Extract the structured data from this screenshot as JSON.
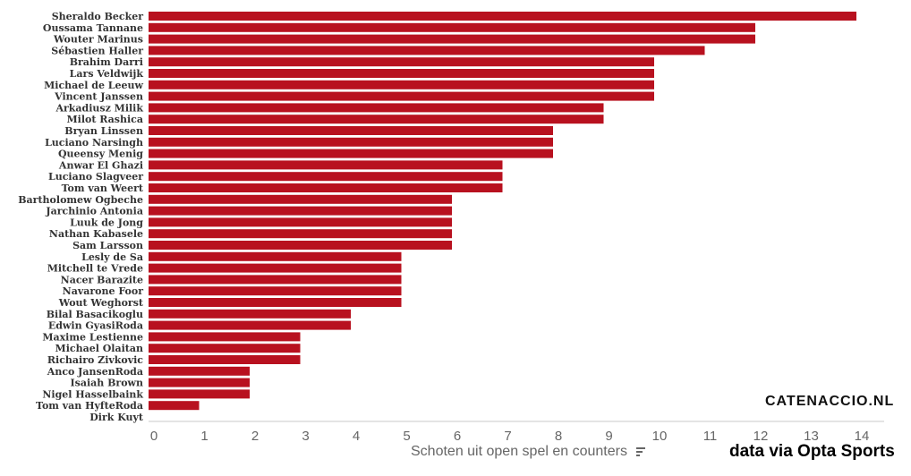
{
  "chart_data": {
    "type": "bar",
    "orientation": "horizontal",
    "categories": [
      "Sheraldo Becker",
      "Oussama Tannane",
      "Wouter Marinus",
      "Sébastien Haller",
      "Brahim Darri",
      "Lars Veldwijk",
      "Michael de Leeuw",
      "Vincent Janssen",
      "Arkadiusz Milik",
      "Milot Rashica",
      "Bryan Linssen",
      "Luciano Narsingh",
      "Queensy Menig",
      "Anwar El Ghazi",
      "Luciano Slagveer",
      "Tom van Weert",
      "Bartholomew Ogbeche",
      "Jarchinio Antonia",
      "Luuk de Jong",
      "Nathan Kabasele",
      "Sam Larsson",
      "Lesly de Sa",
      "Mitchell te Vrede",
      "Nacer Barazite",
      "Navarone Foor",
      "Wout Weghorst",
      "Bilal Basacikoglu",
      "Edwin GyasiRoda",
      "Maxime Lestienne",
      "Michael Olaitan",
      "Richairo Zivkovic",
      "Anco JansenRoda",
      "Isaiah Brown",
      "Nigel Hasselbaink",
      "Tom van HyfteRoda",
      "Dirk Kuyt"
    ],
    "values": [
      14,
      12,
      12,
      11,
      10,
      10,
      10,
      10,
      9,
      9,
      8,
      8,
      8,
      7,
      7,
      7,
      6,
      6,
      6,
      6,
      6,
      5,
      5,
      5,
      5,
      5,
      4,
      4,
      3,
      3,
      3,
      2,
      2,
      2,
      1,
      0
    ],
    "xlabel": "Schoten uit open spel en counters",
    "xlim": [
      0,
      14.5
    ],
    "xticks": [
      0,
      1,
      2,
      3,
      4,
      5,
      6,
      7,
      8,
      9,
      10,
      11,
      12,
      13,
      14
    ],
    "grid": false,
    "bar_color": "#b8111f"
  },
  "brand": "CATENACCIO.NL",
  "source": "data via Opta Sports",
  "sort_icon": "sort-descending-icon"
}
